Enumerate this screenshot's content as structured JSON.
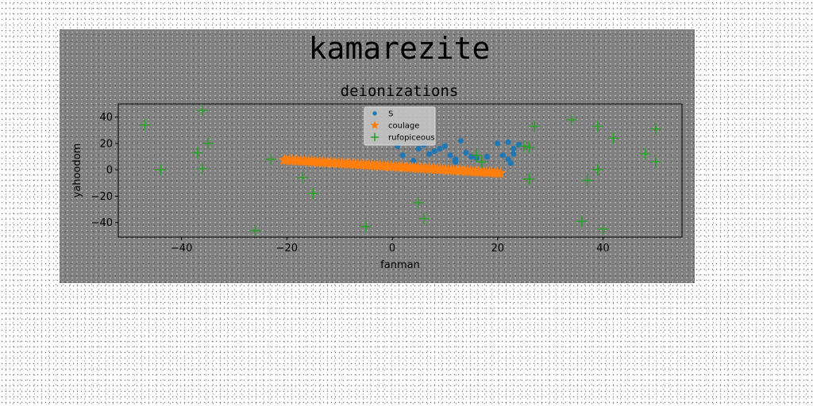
{
  "chart_data": {
    "type": "scatter",
    "suptitle": "kamarezite",
    "title": "deionizations",
    "xlabel": "fanman",
    "ylabel": "yahoodom",
    "xlim": [
      -52,
      55
    ],
    "ylim": [
      -51,
      50
    ],
    "xticks": [
      -40,
      -20,
      0,
      20,
      40
    ],
    "yticks": [
      -40,
      -20,
      0,
      20,
      40
    ],
    "grid": false,
    "legend_position": "upper center",
    "series": [
      {
        "name": "S",
        "marker": "circle",
        "color": "#1f77b4",
        "points": [
          [
            1,
            18
          ],
          [
            2,
            11
          ],
          [
            4,
            7
          ],
          [
            5,
            16
          ],
          [
            6,
            19
          ],
          [
            7,
            12
          ],
          [
            8,
            14
          ],
          [
            9,
            16
          ],
          [
            10,
            18
          ],
          [
            11,
            11
          ],
          [
            12,
            8
          ],
          [
            12,
            6
          ],
          [
            13,
            22
          ],
          [
            14,
            13
          ],
          [
            15,
            10
          ],
          [
            16,
            9
          ],
          [
            20,
            20
          ],
          [
            21,
            11
          ],
          [
            22,
            8
          ],
          [
            22,
            21
          ],
          [
            22.5,
            5
          ],
          [
            23,
            12
          ],
          [
            23,
            16
          ],
          [
            24,
            19
          ],
          [
            18,
            10
          ]
        ]
      },
      {
        "name": "coulage",
        "marker": "star",
        "color": "#ff7f0e",
        "line": {
          "x_start": -20.5,
          "x_end": 20.5,
          "y_start": 7.5,
          "y_end": -2.5,
          "count": 80
        }
      },
      {
        "name": "rufopiceous",
        "marker": "plus",
        "color": "#2ca02c",
        "points": [
          [
            -47,
            34
          ],
          [
            -44,
            0
          ],
          [
            -36,
            45
          ],
          [
            -37,
            13
          ],
          [
            -35,
            20
          ],
          [
            -36,
            1
          ],
          [
            -26,
            -46
          ],
          [
            -23,
            8
          ],
          [
            -17,
            -6
          ],
          [
            -15,
            -18
          ],
          [
            -5,
            -43
          ],
          [
            5,
            -25
          ],
          [
            6,
            -37
          ],
          [
            16,
            11
          ],
          [
            17,
            6
          ],
          [
            25,
            18
          ],
          [
            26,
            17
          ],
          [
            26,
            -7
          ],
          [
            27,
            33
          ],
          [
            34,
            38
          ],
          [
            37,
            -8
          ],
          [
            36,
            -39
          ],
          [
            39,
            33
          ],
          [
            39,
            0
          ],
          [
            40,
            -45
          ],
          [
            42,
            24
          ],
          [
            48,
            12
          ],
          [
            50,
            31
          ],
          [
            50,
            6
          ]
        ]
      }
    ]
  }
}
